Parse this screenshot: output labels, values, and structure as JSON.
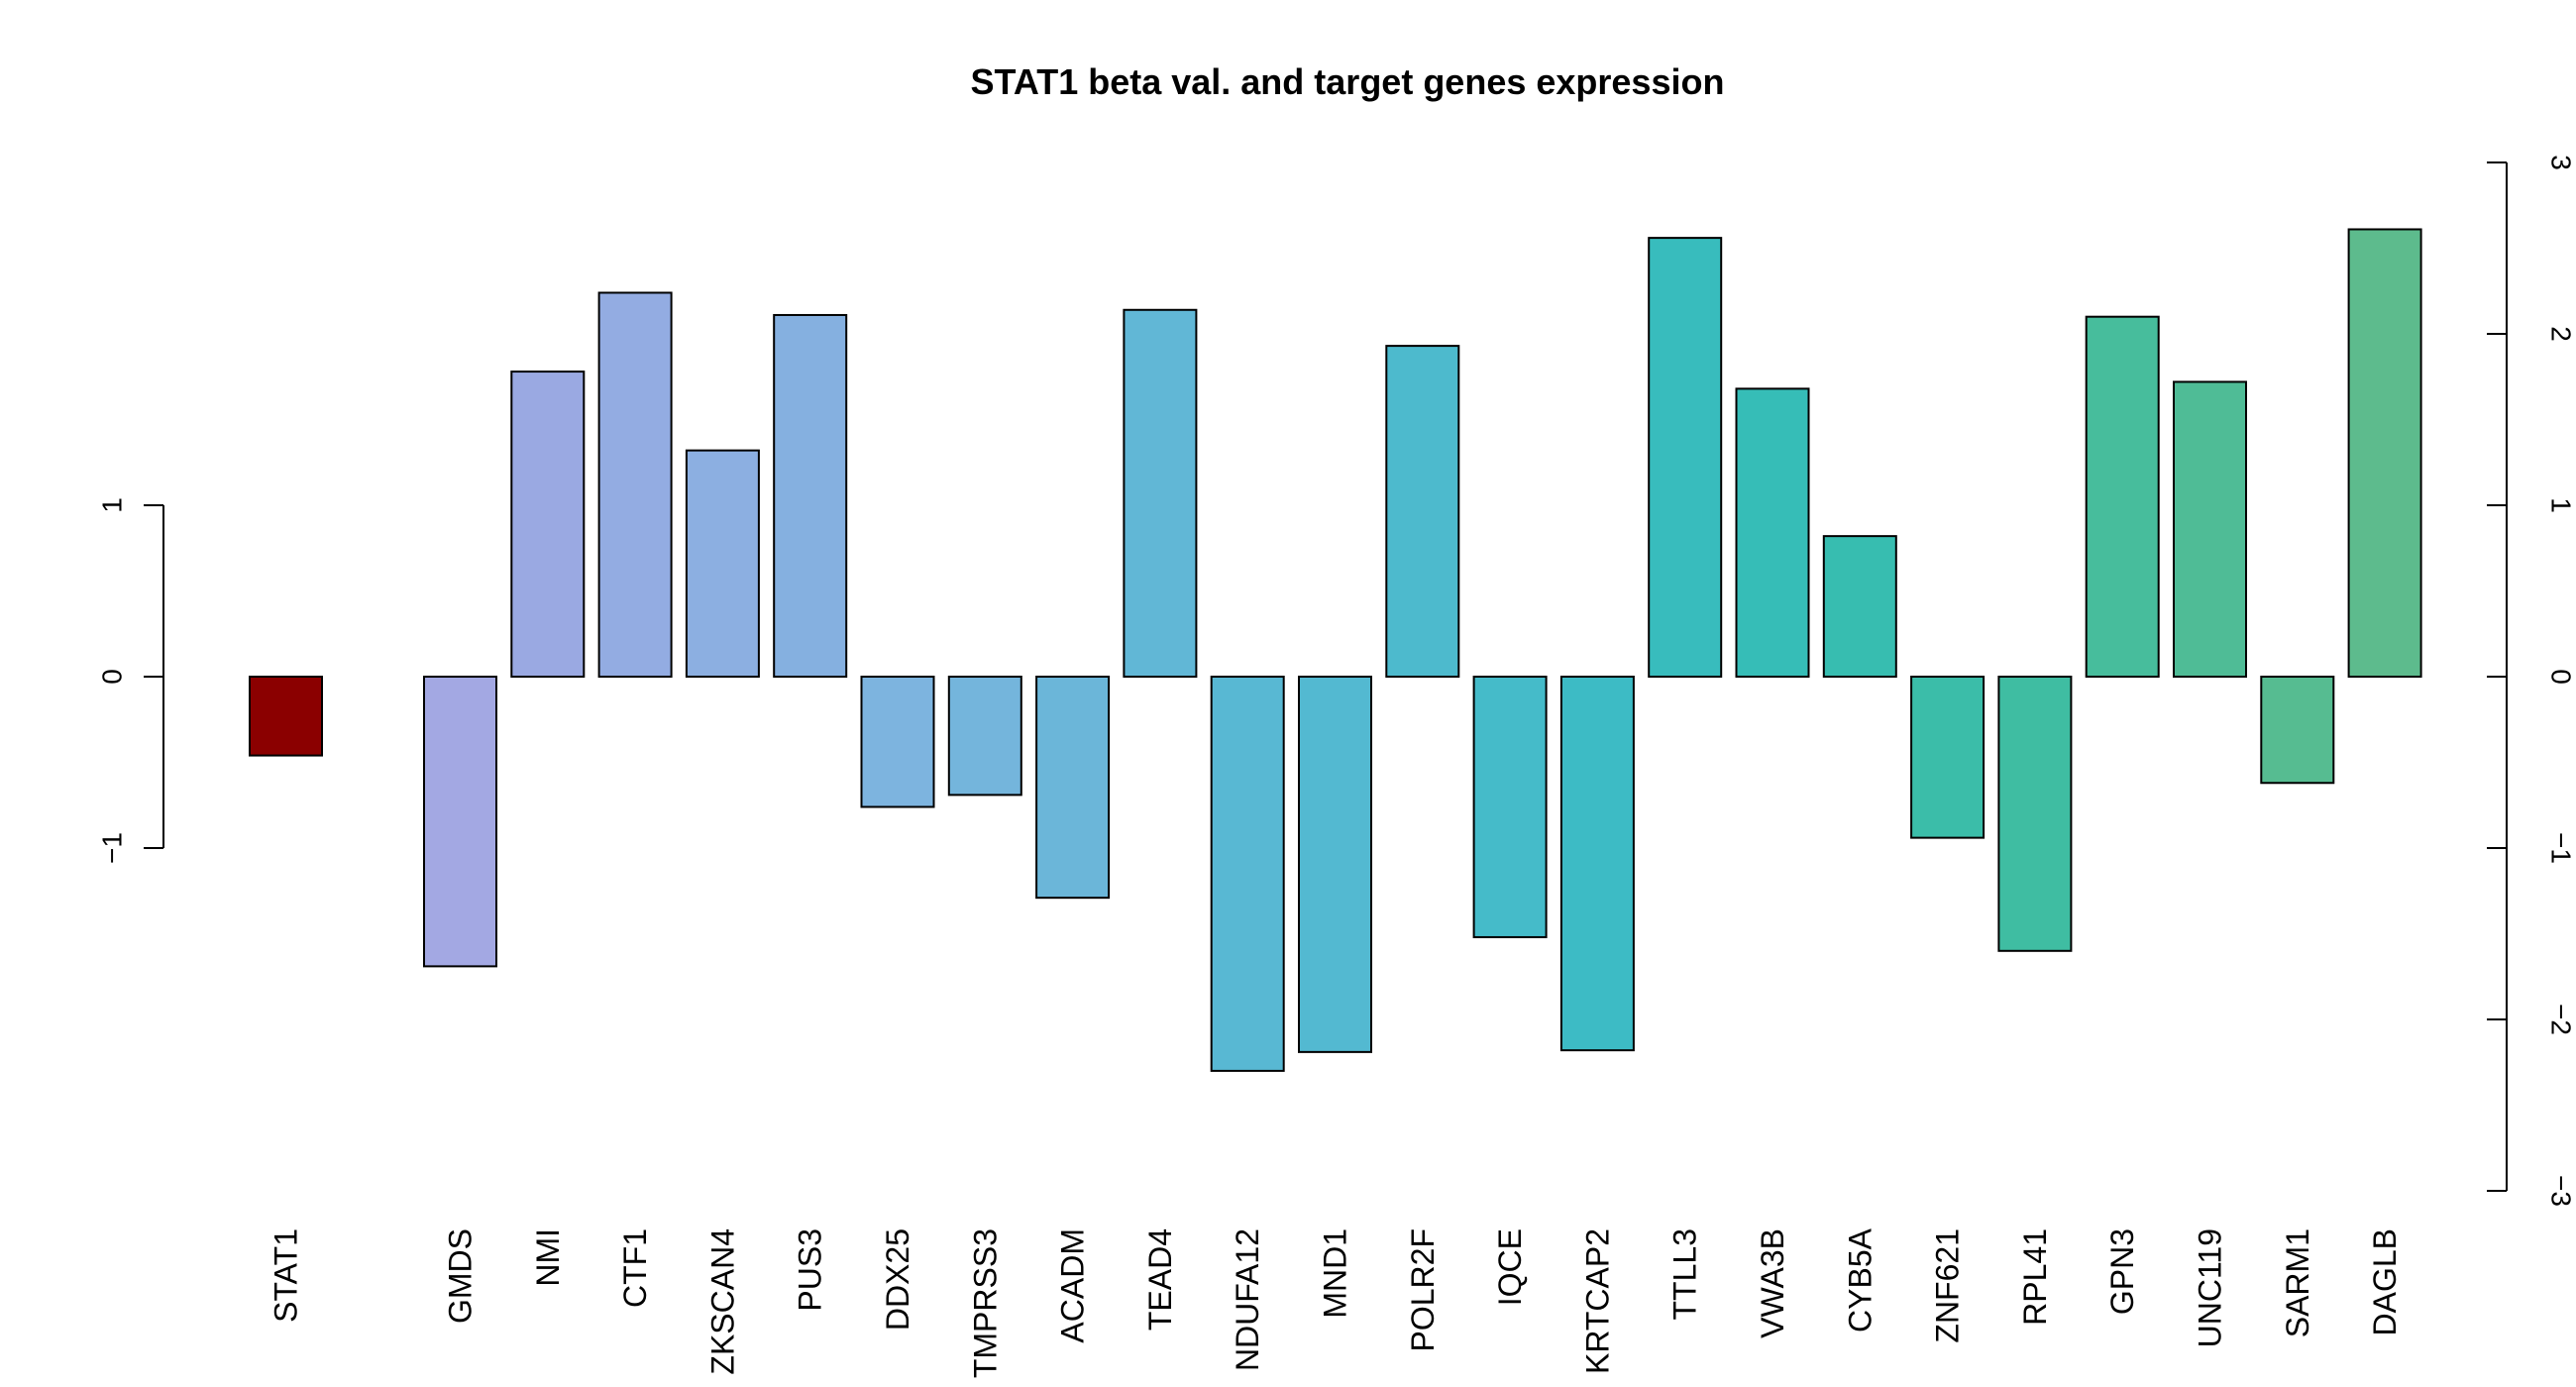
{
  "chart_data": {
    "type": "bar",
    "title": "STAT1 beta val. and target genes expression",
    "left_axis": {
      "ticks": [
        -1,
        0,
        1
      ],
      "tick_labels": [
        "−1",
        "0",
        "1"
      ],
      "range": [
        -1,
        1
      ]
    },
    "right_axis": {
      "ticks": [
        -3,
        -2,
        -1,
        0,
        1,
        2,
        3
      ],
      "tick_labels": [
        "−3",
        "−2",
        "−1",
        "0",
        "1",
        "2",
        "3"
      ],
      "range": [
        -3,
        3
      ]
    },
    "beta": {
      "name": "STAT1",
      "value": -0.46,
      "color": "#8b0000"
    },
    "categories": [
      "GMDS",
      "NMI",
      "CTF1",
      "ZKSCAN4",
      "PUS3",
      "DDX25",
      "TMPRSS3",
      "ACADM",
      "TEAD4",
      "NDUFA12",
      "MND1",
      "POLR2F",
      "IQCE",
      "KRTCAP2",
      "TTLL3",
      "VWA3B",
      "CYB5A",
      "ZNF621",
      "RPL41",
      "GPN3",
      "UNC119",
      "SARM1",
      "DAGLB"
    ],
    "values": [
      -1.69,
      1.78,
      2.24,
      1.32,
      2.11,
      -0.76,
      -0.69,
      -1.29,
      2.14,
      -2.3,
      -2.19,
      1.93,
      -1.52,
      -2.18,
      2.56,
      1.68,
      0.82,
      -0.94,
      -1.6,
      2.1,
      1.72,
      -0.62,
      2.61
    ],
    "colors": [
      "#a3a8e3",
      "#9aa9e2",
      "#93ace2",
      "#8cafe1",
      "#85b0e0",
      "#7db4df",
      "#74b5dc",
      "#6bb6d9",
      "#61b7d6",
      "#58b8d3",
      "#53b9d1",
      "#4dbacd",
      "#45bbc9",
      "#3dbbc5",
      "#38bcbd",
      "#36bdb7",
      "#37bdb0",
      "#3bbda9",
      "#3fbda2",
      "#47bd9c",
      "#4fbc96",
      "#56bc91",
      "#5dbb8d"
    ]
  }
}
